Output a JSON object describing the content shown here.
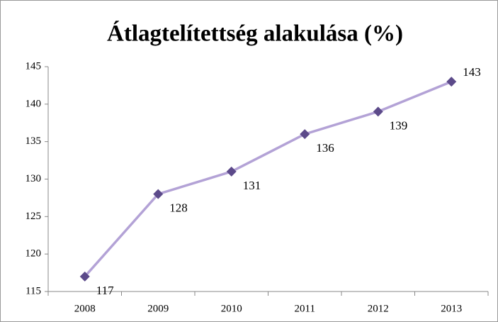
{
  "chart_data": {
    "type": "line",
    "title": "Átlagtelítettség alakulása (%)",
    "categories": [
      "2008",
      "2009",
      "2010",
      "2011",
      "2012",
      "2013"
    ],
    "series": [
      {
        "name": "Átlagtelítettség",
        "color": "#b3a2d6",
        "marker_color": "#5c4a8a",
        "values": [
          117,
          128,
          131,
          136,
          139,
          143
        ]
      }
    ],
    "ylim": [
      115,
      145
    ],
    "yticks": [
      115,
      120,
      125,
      130,
      135,
      140,
      145
    ],
    "grid": false,
    "data_labels": true
  }
}
